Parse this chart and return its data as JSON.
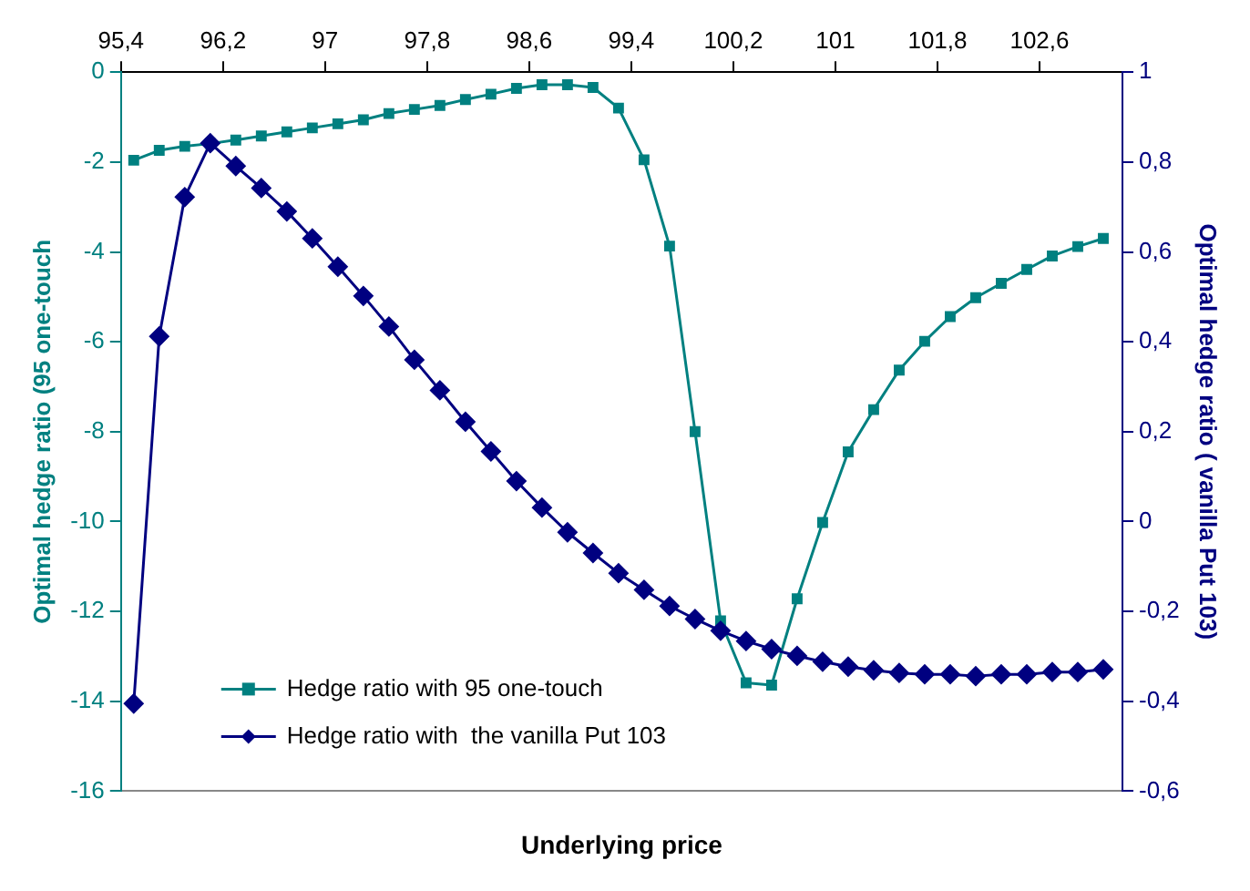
{
  "chart_data": {
    "type": "line",
    "xlabel": "Underlying price",
    "ylabel": "Optimal hedge ratio (95 one-touch",
    "y2label": "Optimal hedge ratio ( vanilla Put 103)",
    "x": [
      95.5,
      95.7,
      95.9,
      96.1,
      96.3,
      96.5,
      96.7,
      96.9,
      97.1,
      97.3,
      97.5,
      97.7,
      97.9,
      98.1,
      98.3,
      98.5,
      98.7,
      98.9,
      99.1,
      99.3,
      99.5,
      99.7,
      99.9,
      100.1,
      100.3,
      100.5,
      100.7,
      100.9,
      101.1,
      101.3,
      101.5,
      101.7,
      101.9,
      102.1,
      102.3,
      102.5,
      102.7,
      102.9,
      103.1
    ],
    "series": [
      {
        "name": "Hedge ratio with 95 one-touch",
        "color": "#008080",
        "marker": "square",
        "values": [
          -1.96,
          -1.74,
          -1.65,
          -1.59,
          -1.51,
          -1.42,
          -1.33,
          -1.24,
          -1.15,
          -1.06,
          -0.92,
          -0.83,
          -0.74,
          -0.61,
          -0.49,
          -0.36,
          -0.28,
          -0.28,
          -0.34,
          -0.8,
          -1.95,
          -3.87,
          -8.0,
          -12.21,
          -13.59,
          -13.64,
          -11.72,
          -10.02,
          -8.45,
          -7.51,
          -6.63,
          -5.99,
          -5.44,
          -5.02,
          -4.7,
          -4.39,
          -4.09,
          -3.88,
          -3.7
        ]
      },
      {
        "name": "Hedge ratio with  the vanilla Put 103",
        "color": "#000080",
        "marker": "diamond",
        "axis": "y2",
        "values": [
          -0.405,
          0.412,
          0.722,
          0.842,
          0.791,
          0.742,
          0.69,
          0.63,
          0.567,
          0.502,
          0.434,
          0.36,
          0.292,
          0.222,
          0.156,
          0.09,
          0.031,
          -0.024,
          -0.07,
          -0.115,
          -0.152,
          -0.188,
          -0.217,
          -0.243,
          -0.266,
          -0.284,
          -0.299,
          -0.312,
          -0.323,
          -0.331,
          -0.337,
          -0.34,
          -0.34,
          -0.344,
          -0.34,
          -0.34,
          -0.335,
          -0.335,
          -0.329
        ]
      }
    ],
    "xlim": [
      95.4,
      103.25
    ],
    "xticks": [
      {
        "value": 95.4,
        "label": "95,4"
      },
      {
        "value": 96.2,
        "label": "96,2"
      },
      97,
      {
        "value": 97.8,
        "label": "97,8"
      },
      {
        "value": 98.6,
        "label": "98,6"
      },
      {
        "value": 99.4,
        "label": "99,4"
      },
      {
        "value": 100.2,
        "label": "100,2"
      },
      101,
      {
        "value": 101.8,
        "label": "101,8"
      },
      {
        "value": 102.6,
        "label": "102,6"
      }
    ],
    "ylim": [
      -16,
      0
    ],
    "yticks": [
      -16,
      -14,
      -12,
      -10,
      -8,
      -6,
      -4,
      -2,
      0
    ],
    "y2lim": [
      -0.6,
      1
    ],
    "y2ticks": [
      {
        "value": -0.6,
        "label": "-0,6"
      },
      {
        "value": -0.4,
        "label": "-0,4"
      },
      {
        "value": -0.2,
        "label": "-0,2"
      },
      0,
      {
        "value": 0.2,
        "label": "0,2"
      },
      {
        "value": 0.4,
        "label": "0,4"
      },
      {
        "value": 0.6,
        "label": "0,6"
      },
      {
        "value": 0.8,
        "label": "0,8"
      },
      1
    ],
    "grid": false,
    "legend": "bottom left",
    "line_style": "solid"
  }
}
